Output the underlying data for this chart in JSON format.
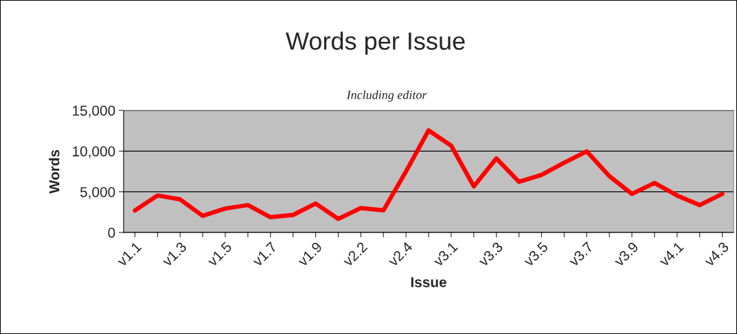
{
  "chart_data": {
    "type": "line",
    "title": "Words per Issue",
    "subtitle": "Including editor",
    "xlabel": "Issue",
    "ylabel": "Words",
    "categories": [
      "v1.1",
      null,
      "v1.3",
      null,
      "v1.5",
      null,
      "v1.7",
      null,
      "v1.9",
      null,
      "v2.2",
      null,
      "v2.4",
      null,
      "v3.1",
      null,
      "v3.3",
      null,
      "v3.5",
      null,
      "v3.7",
      null,
      "v3.9",
      null,
      "v4.1",
      null,
      "v4.3"
    ],
    "series": [
      {
        "color": "#ff0000",
        "values": [
          2700,
          4550,
          4070,
          2050,
          2950,
          3370,
          1880,
          2160,
          3560,
          1680,
          3000,
          2720,
          7500,
          12550,
          10670,
          5670,
          9100,
          6230,
          7070,
          8570,
          9970,
          6930,
          4740,
          6090,
          4550,
          3370,
          4740
        ]
      }
    ],
    "ylim": [
      0,
      15000
    ],
    "yticks": [
      {
        "value": 0,
        "label": "0"
      },
      {
        "value": 5000,
        "label": "5,000"
      },
      {
        "value": 10000,
        "label": "10,000"
      },
      {
        "value": 15000,
        "label": "15,000"
      }
    ],
    "grid": "y",
    "legend": false,
    "marker": "none",
    "line_style": "solid"
  }
}
